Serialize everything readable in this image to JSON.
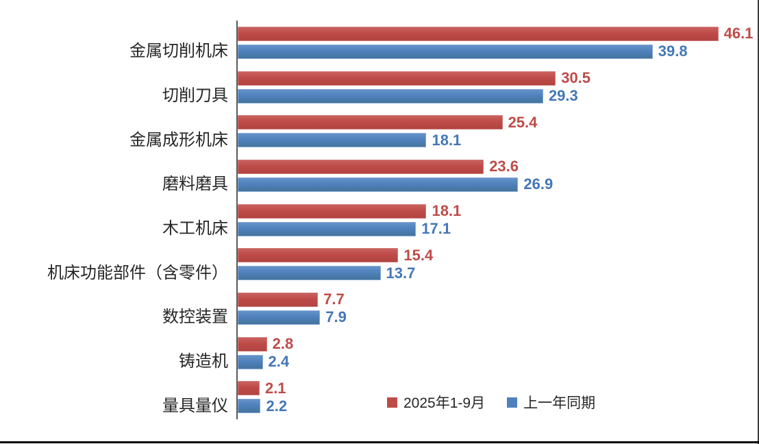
{
  "chart_data": {
    "type": "bar",
    "orientation": "horizontal",
    "title": "",
    "categories": [
      "金属切削机床",
      "切削刀具",
      "金属成形机床",
      "磨料磨具",
      "木工机床",
      "机床功能部件（含零件）",
      "数控装置",
      "铸造机",
      "量具量仪"
    ],
    "series": [
      {
        "name": "2025年1-9月",
        "color": "#be4b48",
        "values": [
          46.1,
          30.5,
          25.4,
          23.6,
          18.1,
          15.4,
          7.7,
          2.8,
          2.1
        ]
      },
      {
        "name": "上一年同期",
        "color": "#4f81bd",
        "values": [
          39.8,
          29.3,
          18.1,
          26.9,
          17.1,
          13.7,
          7.9,
          2.4,
          2.2
        ]
      }
    ],
    "xlim": [
      0,
      50
    ],
    "value_labels": true,
    "grid": false,
    "legend_position": "bottom",
    "axis_color": "#595959",
    "value_label_colors": {
      "s0": "#be4b48",
      "s1": "#4377b7"
    }
  }
}
